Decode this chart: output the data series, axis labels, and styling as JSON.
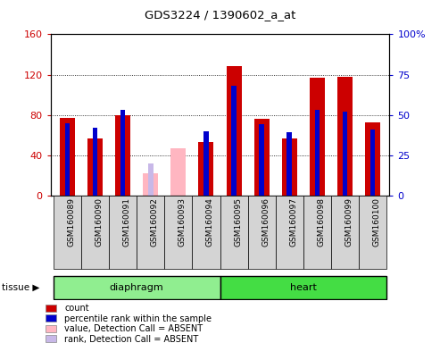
{
  "title": "GDS3224 / 1390602_a_at",
  "samples": [
    "GSM160089",
    "GSM160090",
    "GSM160091",
    "GSM160092",
    "GSM160093",
    "GSM160094",
    "GSM160095",
    "GSM160096",
    "GSM160097",
    "GSM160098",
    "GSM160099",
    "GSM160100"
  ],
  "red_values": [
    77,
    57,
    80,
    0,
    0,
    53,
    128,
    76,
    57,
    117,
    118,
    73
  ],
  "blue_values": [
    45,
    42,
    53,
    0,
    0,
    40,
    68,
    44,
    39,
    53,
    52,
    41
  ],
  "pink_values": [
    0,
    0,
    0,
    22,
    47,
    0,
    0,
    0,
    0,
    0,
    0,
    0
  ],
  "lpink_values": [
    0,
    0,
    0,
    20,
    0,
    0,
    0,
    0,
    0,
    0,
    0,
    0
  ],
  "absent": [
    false,
    false,
    false,
    true,
    true,
    false,
    false,
    false,
    false,
    false,
    false,
    false
  ],
  "diaphragm_indices": [
    0,
    1,
    2,
    3,
    4,
    5
  ],
  "heart_indices": [
    6,
    7,
    8,
    9,
    10,
    11
  ],
  "left_ylim": [
    0,
    160
  ],
  "right_ylim": [
    0,
    100
  ],
  "left_yticks": [
    0,
    40,
    80,
    120,
    160
  ],
  "right_yticks": [
    0,
    25,
    50,
    75,
    100
  ],
  "right_yticklabels": [
    "0",
    "25",
    "50",
    "75",
    "100%"
  ],
  "red_color": "#CC0000",
  "blue_color": "#0000CC",
  "pink_color": "#FFB6C1",
  "lpink_color": "#C8B8E8",
  "diaphragm_color": "#90EE90",
  "heart_color": "#44DD44",
  "bar_bg_color": "#D4D4D4",
  "plot_bg": "#FFFFFF",
  "legend_items": [
    [
      "#CC0000",
      "count"
    ],
    [
      "#0000CC",
      "percentile rank within the sample"
    ],
    [
      "#FFB6C1",
      "value, Detection Call = ABSENT"
    ],
    [
      "#C8B8E8",
      "rank, Detection Call = ABSENT"
    ]
  ]
}
